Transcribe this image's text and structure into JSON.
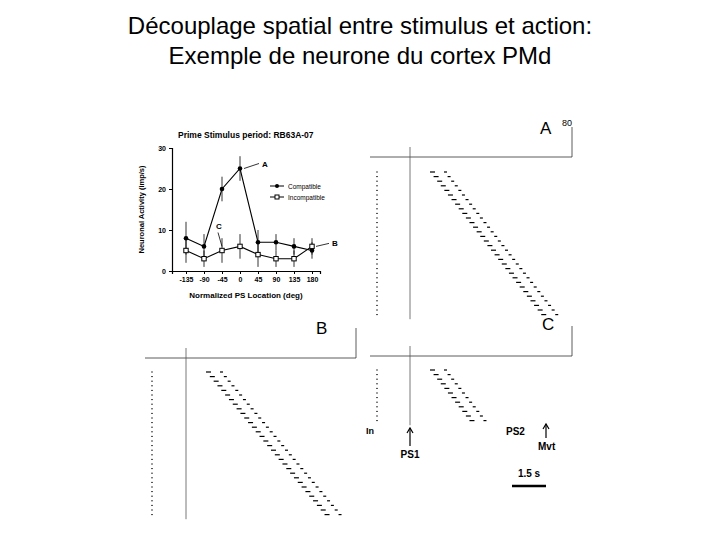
{
  "header": {
    "title": [
      "Découplage spatial entre stimulus et action:",
      "Exemple de neurone du cortex PMd"
    ]
  },
  "chart_data": {
    "type": "line",
    "title": "Prime Stimulus period: RB63A-07",
    "x_label": "Normalized PS Location (deg)",
    "y_label": "Neuronal Activity (imp/s)",
    "x": [
      -135,
      -90,
      -45,
      0,
      45,
      90,
      135,
      180
    ],
    "series": [
      {
        "name": "Compatible",
        "color": "#000000",
        "marker": "circle",
        "values": [
          8,
          6,
          20,
          25,
          7,
          7,
          6,
          5
        ],
        "errors": [
          4,
          3,
          3,
          3,
          3,
          2,
          2,
          2
        ]
      },
      {
        "name": "Incompatible",
        "color": "#000000",
        "marker": "square-open",
        "values": [
          5,
          3,
          5,
          6,
          4,
          3,
          3,
          6
        ],
        "errors": [
          3,
          2,
          3,
          3,
          3,
          2,
          2,
          2
        ]
      }
    ],
    "xlim": [
      -170,
      200
    ],
    "ylim": [
      0,
      30
    ],
    "xticks": [
      -135,
      -90,
      -45,
      0,
      45,
      90,
      135,
      180
    ],
    "yticks": [
      0,
      10,
      20,
      30
    ],
    "legend": "upper right",
    "annotations": [
      {
        "text": "A",
        "x": 0,
        "y": 25
      },
      {
        "text": "B",
        "x": 180,
        "y": 6
      },
      {
        "text": "C",
        "x": -45,
        "y": 5
      }
    ]
  },
  "rasters": {
    "panels": [
      {
        "label": "A",
        "scale": 80
      },
      {
        "label": "B"
      },
      {
        "label": "C"
      }
    ],
    "events": {
      "start": "In",
      "ps1": "PS1",
      "ps2": "PS2",
      "movement": "Mvt"
    },
    "scale_bar": "1.5 s"
  }
}
